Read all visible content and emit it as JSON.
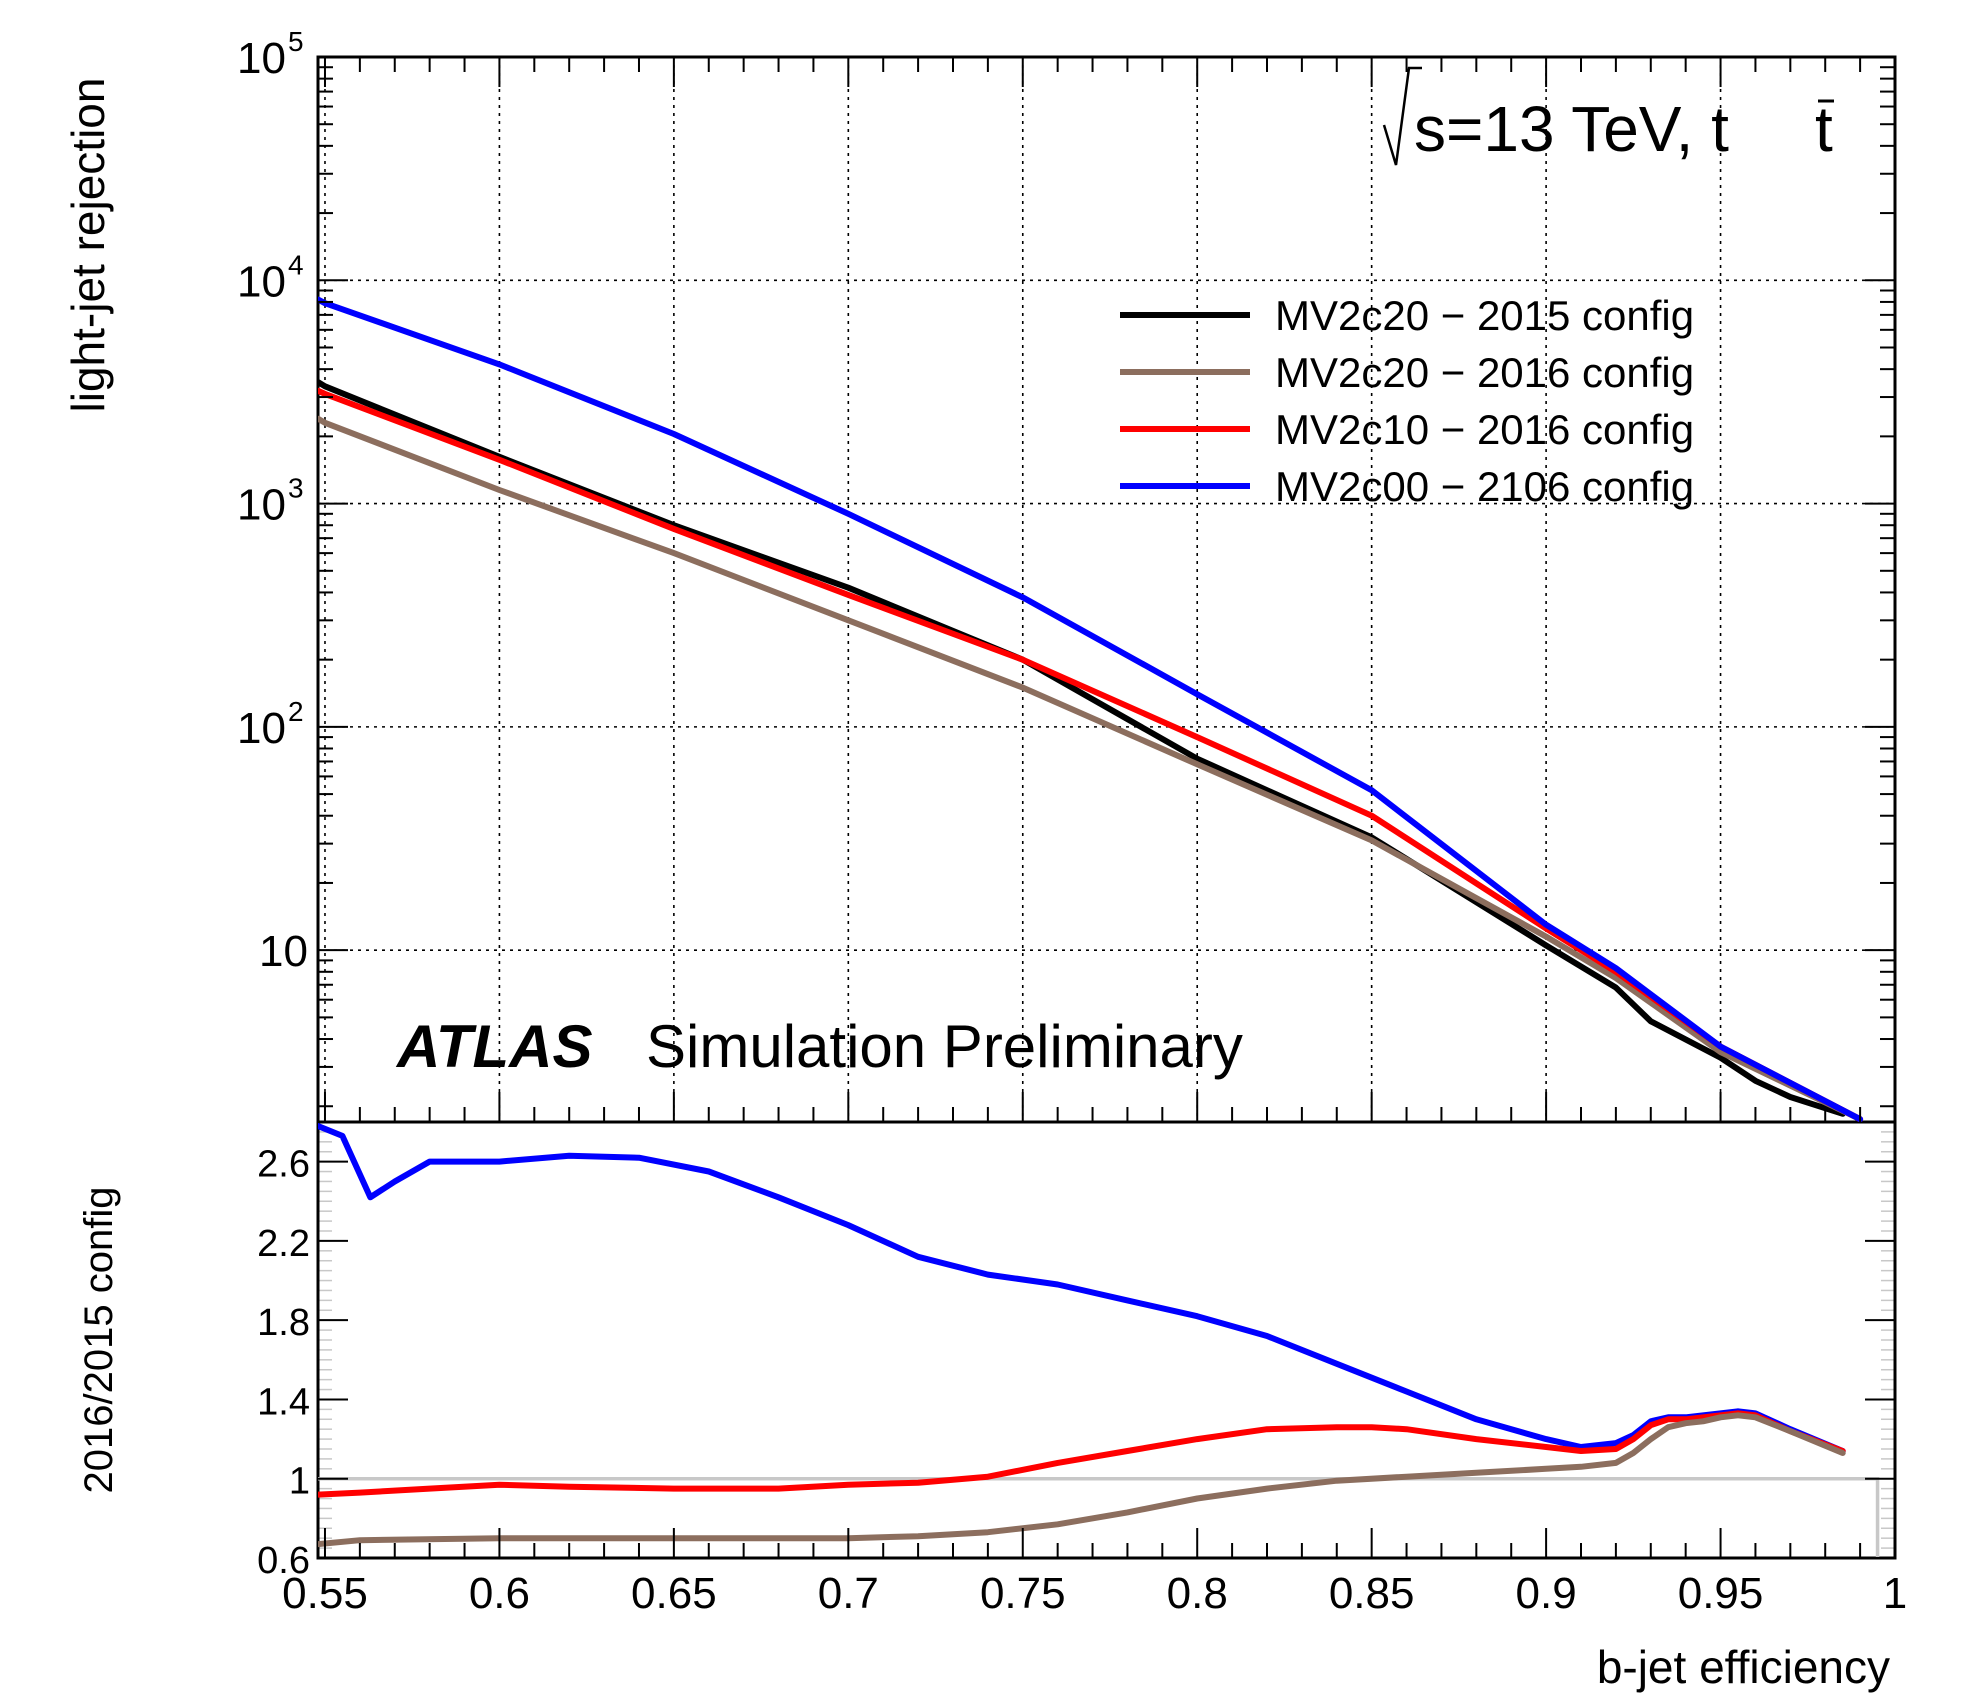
{
  "chart_data": [
    {
      "type": "line",
      "panel": "main",
      "scale": "log",
      "ylabel": "light-jet rejection",
      "xlim": [
        0.548,
        1.0
      ],
      "ylim": [
        1.7,
        100000
      ],
      "x_ticks": [
        "0.55",
        "0.6",
        "0.65",
        "0.7",
        "0.75",
        "0.8",
        "0.85",
        "0.9",
        "0.95",
        "1"
      ],
      "x_tick_values": [
        0.55,
        0.6,
        0.65,
        0.7,
        0.75,
        0.8,
        0.85,
        0.9,
        0.95,
        1.0
      ],
      "y_ticks": [
        {
          "value": 10,
          "base": "10",
          "exp": ""
        },
        {
          "value": 100,
          "base": "10",
          "exp": "2"
        },
        {
          "value": 1000,
          "base": "10",
          "exp": "3"
        },
        {
          "value": 10000,
          "base": "10",
          "exp": "4"
        },
        {
          "value": 100000,
          "base": "10",
          "exp": "5"
        }
      ],
      "grid": true,
      "annotations": {
        "energy": "s=13 TeV, t",
        "energy_tbar": "t",
        "atlas_bold": "ATLAS",
        "atlas_rest": "Simulation Preliminary"
      },
      "legend_position": "top-right",
      "series": [
        {
          "name": "MV2c20 − 2015 config",
          "color": "#000000",
          "x": [
            0.548,
            0.55,
            0.6,
            0.65,
            0.7,
            0.75,
            0.8,
            0.85,
            0.9,
            0.92,
            0.93,
            0.95,
            0.96,
            0.97,
            0.985
          ],
          "y": [
            3500,
            3350,
            1620,
            800,
            420,
            200,
            72,
            32,
            10.5,
            6.8,
            4.8,
            3.3,
            2.6,
            2.2,
            1.85
          ]
        },
        {
          "name": "MV2c20 − 2016 config",
          "color": "#8c6e5e",
          "x": [
            0.548,
            0.55,
            0.6,
            0.65,
            0.7,
            0.75,
            0.8,
            0.85,
            0.9,
            0.92,
            0.95,
            0.99
          ],
          "y": [
            2400,
            2300,
            1150,
            600,
            300,
            150,
            68,
            31,
            11.5,
            7.5,
            3.5,
            1.75
          ]
        },
        {
          "name": "MV2c10 − 2016 config",
          "color": "#ff0000",
          "x": [
            0.548,
            0.55,
            0.6,
            0.65,
            0.7,
            0.75,
            0.8,
            0.85,
            0.9,
            0.92,
            0.95,
            0.99
          ],
          "y": [
            3200,
            3100,
            1570,
            770,
            390,
            200,
            90,
            40,
            12.5,
            8.0,
            3.7,
            1.75
          ]
        },
        {
          "name": "MV2c00 − 2106 config",
          "color": "#0000ff",
          "x": [
            0.548,
            0.55,
            0.6,
            0.65,
            0.7,
            0.75,
            0.8,
            0.85,
            0.9,
            0.92,
            0.95,
            0.99
          ],
          "y": [
            8200,
            7900,
            4200,
            2050,
            900,
            380,
            140,
            52,
            13,
            8.3,
            3.7,
            1.75
          ]
        }
      ]
    },
    {
      "type": "line",
      "panel": "ratio",
      "scale": "linear",
      "xlabel": "b-jet efficiency",
      "ylabel": "2016/2015 config",
      "xlim": [
        0.548,
        1.0
      ],
      "ylim": [
        0.6,
        2.8
      ],
      "y_ticks": [
        "0.6",
        "1",
        "1.4",
        "1.8",
        "2.2",
        "2.6"
      ],
      "y_tick_values": [
        0.6,
        1.0,
        1.4,
        1.8,
        2.2,
        2.6
      ],
      "reference_line": {
        "value": 1.0,
        "x_end": 0.995,
        "color": "#c8c8c8"
      },
      "series": [
        {
          "name": "MV2c00 − 2106 config",
          "color": "#0000ff",
          "x": [
            0.548,
            0.555,
            0.563,
            0.57,
            0.58,
            0.6,
            0.62,
            0.64,
            0.66,
            0.68,
            0.7,
            0.72,
            0.74,
            0.76,
            0.78,
            0.8,
            0.82,
            0.84,
            0.86,
            0.88,
            0.9,
            0.91,
            0.92,
            0.925,
            0.93,
            0.935,
            0.94,
            0.945,
            0.95,
            0.955,
            0.96,
            0.97,
            0.985
          ],
          "y": [
            2.78,
            2.73,
            2.42,
            2.5,
            2.6,
            2.6,
            2.63,
            2.62,
            2.55,
            2.42,
            2.28,
            2.12,
            2.03,
            1.98,
            1.9,
            1.82,
            1.72,
            1.58,
            1.44,
            1.3,
            1.2,
            1.16,
            1.18,
            1.22,
            1.29,
            1.31,
            1.31,
            1.32,
            1.33,
            1.34,
            1.33,
            1.25,
            1.14
          ]
        },
        {
          "name": "MV2c10 − 2016 config",
          "color": "#ff0000",
          "x": [
            0.548,
            0.56,
            0.58,
            0.6,
            0.62,
            0.65,
            0.68,
            0.7,
            0.72,
            0.74,
            0.76,
            0.78,
            0.8,
            0.82,
            0.84,
            0.85,
            0.86,
            0.88,
            0.9,
            0.91,
            0.92,
            0.925,
            0.93,
            0.935,
            0.94,
            0.945,
            0.95,
            0.955,
            0.96,
            0.97,
            0.985
          ],
          "y": [
            0.92,
            0.93,
            0.95,
            0.97,
            0.96,
            0.95,
            0.95,
            0.97,
            0.98,
            1.01,
            1.08,
            1.14,
            1.2,
            1.25,
            1.26,
            1.26,
            1.25,
            1.2,
            1.16,
            1.14,
            1.15,
            1.2,
            1.27,
            1.3,
            1.3,
            1.31,
            1.32,
            1.33,
            1.32,
            1.24,
            1.14
          ]
        },
        {
          "name": "MV2c20 − 2016 config",
          "color": "#8c6e5e",
          "x": [
            0.548,
            0.56,
            0.6,
            0.65,
            0.7,
            0.72,
            0.74,
            0.76,
            0.78,
            0.8,
            0.82,
            0.84,
            0.86,
            0.88,
            0.9,
            0.91,
            0.92,
            0.925,
            0.93,
            0.935,
            0.94,
            0.945,
            0.95,
            0.955,
            0.96,
            0.97,
            0.985
          ],
          "y": [
            0.67,
            0.69,
            0.7,
            0.7,
            0.7,
            0.71,
            0.73,
            0.77,
            0.83,
            0.9,
            0.95,
            0.99,
            1.01,
            1.03,
            1.05,
            1.06,
            1.08,
            1.13,
            1.2,
            1.26,
            1.28,
            1.29,
            1.31,
            1.32,
            1.31,
            1.24,
            1.13
          ]
        }
      ]
    }
  ]
}
